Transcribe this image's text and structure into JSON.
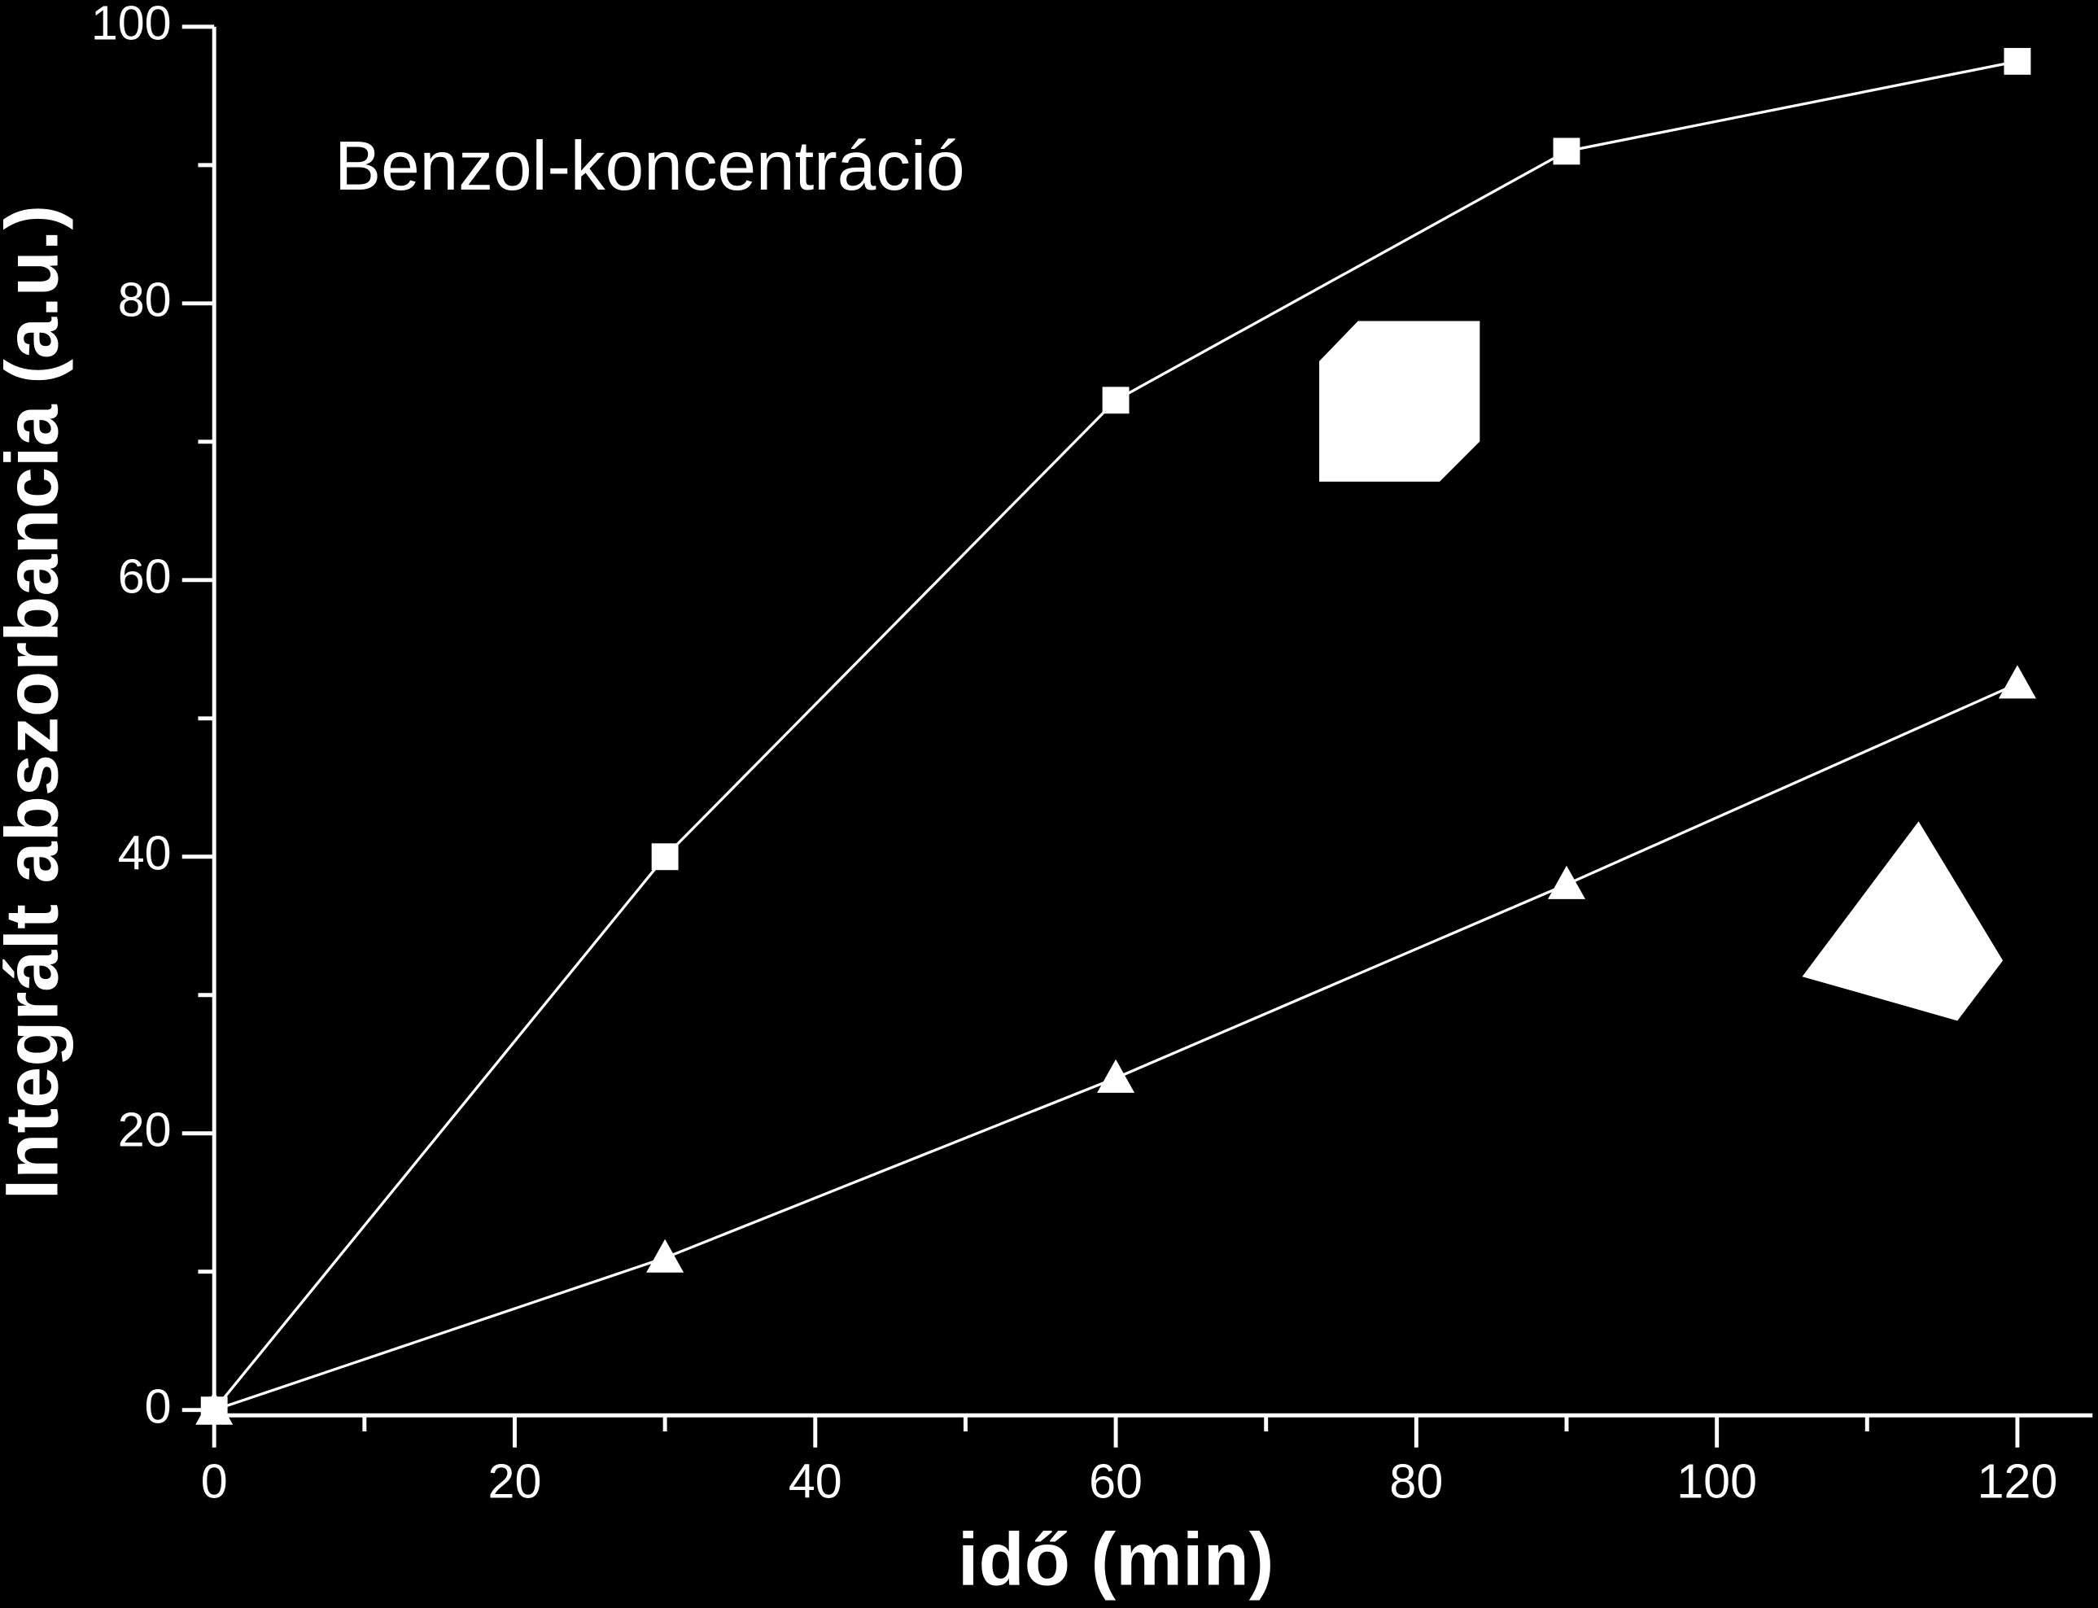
{
  "chart_data": {
    "type": "line",
    "annotation": "Benzol-koncentráció",
    "x_label": "idő (min)",
    "y_label": "Integrált abszorbancia (a.u.)",
    "x": [
      0,
      30,
      60,
      90,
      120
    ],
    "series": [
      {
        "color": "#ffffff",
        "marker": "square",
        "values": [
          0,
          40,
          73,
          91,
          97.5
        ]
      },
      {
        "color": "#ffffff",
        "marker": "triangle",
        "values": [
          0,
          11,
          24,
          38,
          52.5
        ]
      }
    ],
    "xlim": [
      0,
      125
    ],
    "xticks": [
      0,
      20,
      40,
      60,
      80,
      100,
      120
    ],
    "xminor": [
      10,
      30,
      50,
      70,
      90,
      110
    ],
    "ylim": [
      0,
      100
    ],
    "yticks": [
      0,
      20,
      40,
      60,
      80,
      100
    ],
    "yminor": [
      10,
      30,
      50,
      70,
      90
    ],
    "grid": false
  }
}
